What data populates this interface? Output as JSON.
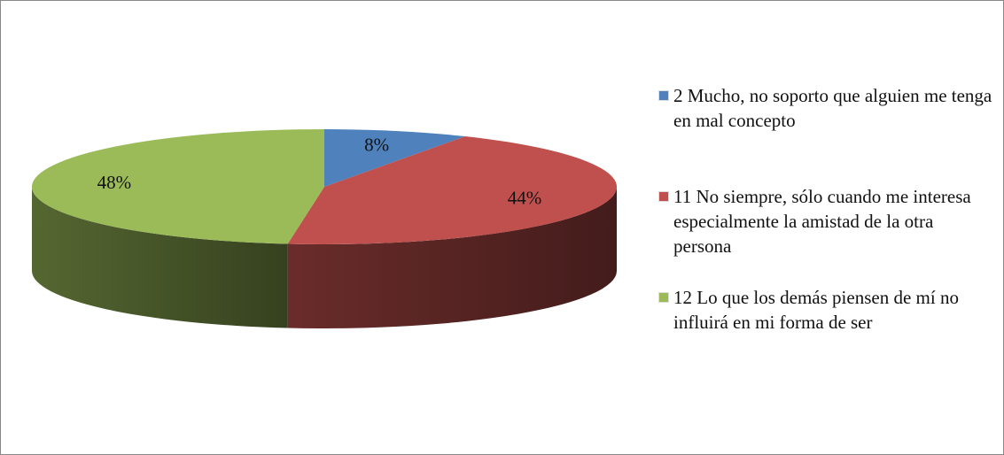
{
  "chart_data": {
    "type": "pie",
    "categories": [
      "2 Mucho, no soporto que alguien me tenga en mal concepto",
      "11 No siempre, sólo cuando me interesa especialmente la amistad de la otra persona",
      "12 Lo que los demás piensen de mí no influirá en mi forma de ser"
    ],
    "values": [
      8,
      44,
      48
    ],
    "value_labels": [
      "8%",
      "44%",
      "48%"
    ],
    "colors": [
      "#4f81bd",
      "#c0504d",
      "#9bbb59"
    ],
    "legend": "right"
  }
}
